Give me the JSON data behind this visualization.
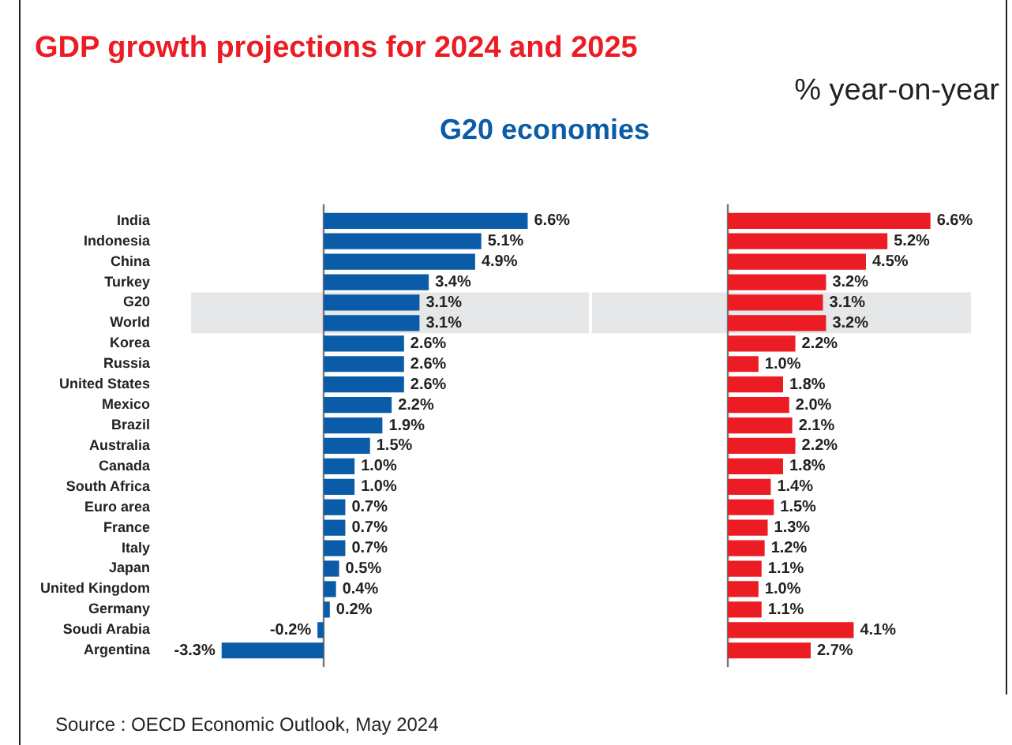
{
  "chart_data": [
    {
      "type": "bar",
      "orientation": "horizontal",
      "title": "GDP growth projections for 2024 and 2025",
      "subtitle": "G20 economies",
      "annotations": [
        "% year-on-year",
        "Source : OECD Economic Outlook, May 2024"
      ],
      "tick_labels": "y",
      "grid": false,
      "legend": false,
      "categories": [
        "India",
        "Indonesia",
        "China",
        "Turkey",
        "G20",
        "World",
        "Korea",
        "Russia",
        "United States",
        "Mexico",
        "Brazil",
        "Australia",
        "Canada",
        "South Africa",
        "Euro area",
        "France",
        "Italy",
        "Japan",
        "United Kingdom",
        "Germany",
        "Soudi Arabia",
        "Argentina"
      ],
      "series": [
        {
          "color": "#0a5ca8",
          "values": [
            6.6,
            5.1,
            4.9,
            3.4,
            3.1,
            3.1,
            2.6,
            2.6,
            2.6,
            2.2,
            1.9,
            1.5,
            1.0,
            1.0,
            0.7,
            0.7,
            0.7,
            0.5,
            0.4,
            0.2,
            -0.2,
            -3.3
          ],
          "value_labels": [
            "6.6%",
            "5.1%",
            "4.9%",
            "3.4%",
            "3.1%",
            "3.1%",
            "2.6%",
            "2.6%",
            "2.6%",
            "2.2%",
            "1.9%",
            "1.5%",
            "1.0%",
            "1.0%",
            "0.7%",
            "0.7%",
            "0.7%",
            "0.5%",
            "0.4%",
            "0.2%",
            "-0.2%",
            "-3.3%"
          ]
        }
      ],
      "bands": [
        {
          "axis": "y",
          "from": "G20",
          "to": "World",
          "color": "#e6e7e9"
        }
      ]
    },
    {
      "type": "bar",
      "orientation": "horizontal",
      "tick_labels": false,
      "grid": false,
      "legend": false,
      "categories": [
        "India",
        "Indonesia",
        "China",
        "Turkey",
        "G20",
        "World",
        "Korea",
        "Russia",
        "United States",
        "Mexico",
        "Brazil",
        "Australia",
        "Canada",
        "South Africa",
        "Euro area",
        "France",
        "Italy",
        "Japan",
        "United Kingdom",
        "Germany",
        "Soudi Arabia",
        "Argentina"
      ],
      "series": [
        {
          "color": "#ec1c24",
          "values": [
            6.6,
            5.2,
            4.5,
            3.2,
            3.1,
            3.2,
            2.2,
            1.0,
            1.8,
            2.0,
            2.1,
            2.2,
            1.8,
            1.4,
            1.5,
            1.3,
            1.2,
            1.1,
            1.0,
            1.1,
            4.1,
            2.7
          ],
          "value_labels": [
            "6.6%",
            "5.2%",
            "4.5%",
            "3.2%",
            "3.1%",
            "3.2%",
            "2.2%",
            "1.0%",
            "1.8%",
            "2.0%",
            "2.1%",
            "2.2%",
            "1.8%",
            "1.4%",
            "1.5%",
            "1.3%",
            "1.2%",
            "1.1%",
            "1.0%",
            "1.1%",
            "4.1%",
            "2.7%"
          ]
        }
      ],
      "bands": [
        {
          "axis": "y",
          "from": "G20",
          "to": "World",
          "color": "#e6e7e9"
        }
      ]
    }
  ]
}
